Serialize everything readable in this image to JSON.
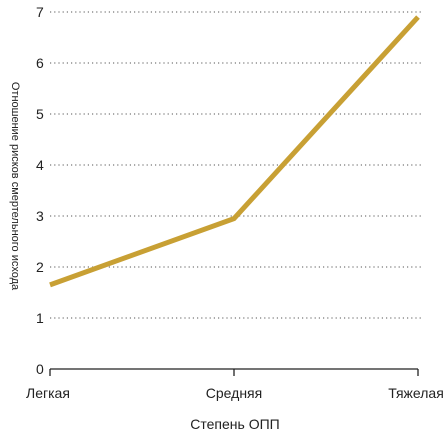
{
  "chart_data": {
    "type": "line",
    "title": "",
    "xlabel": "Степень ОПП",
    "ylabel": "Отношение рисков смертельного исхода",
    "categories": [
      "Легкая",
      "Средняя",
      "Тяжелая"
    ],
    "series": [
      {
        "values": [
          1.65,
          2.95,
          6.9
        ],
        "color": "#c8a034"
      }
    ],
    "ylim": [
      0,
      7
    ],
    "yticks": [
      0,
      1,
      2,
      3,
      4,
      5,
      6,
      7
    ],
    "grid": "horizontal-dotted",
    "legend": "none"
  }
}
